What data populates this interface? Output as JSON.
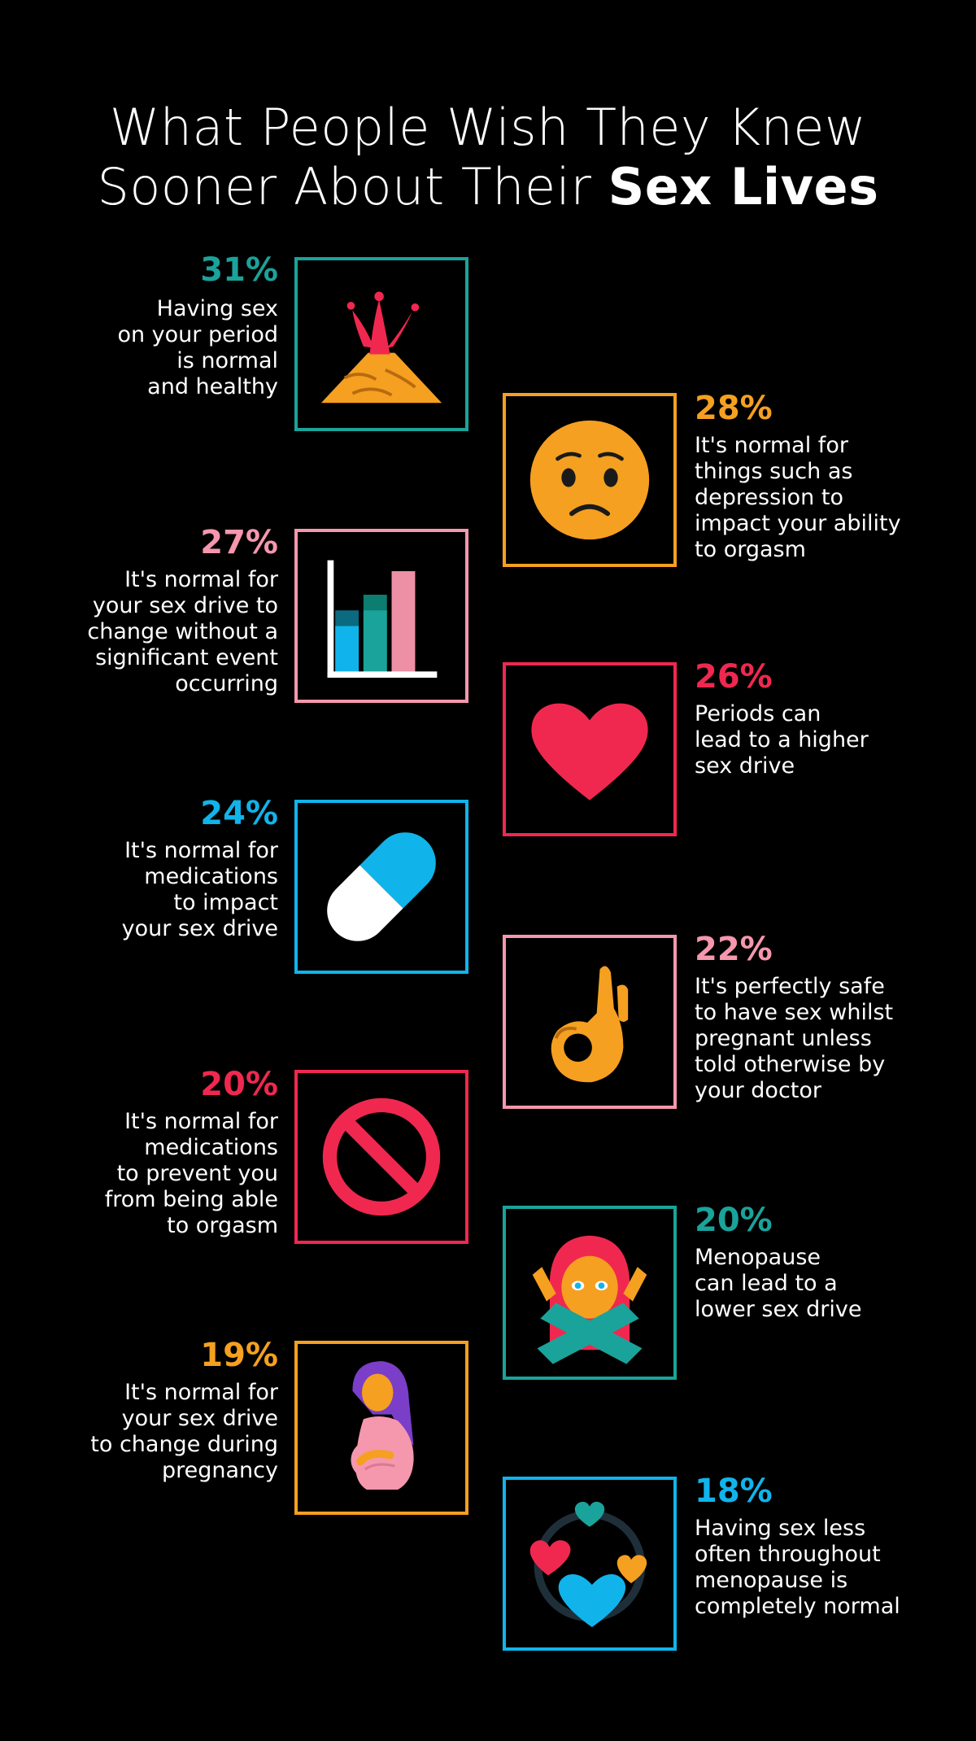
{
  "title": {
    "line1": "What People Wish They Knew",
    "line2_prefix": "Sooner About Their ",
    "line2_bold": "Sex Lives"
  },
  "colors": {
    "teal": "#1aa39a",
    "orange": "#f5a020",
    "pink": "#f597ad",
    "red": "#f0284f",
    "blue": "#10b4ea",
    "background": "#000000"
  },
  "items": [
    {
      "percent": "31%",
      "percent_value": 31,
      "line1": "Having sex",
      "line2": "on your period",
      "line3": "is normal",
      "line4": "and healthy",
      "line5": "",
      "icon": "volcano-icon",
      "color": "#1aa39a"
    },
    {
      "percent": "28%",
      "percent_value": 28,
      "line1": "It's normal for",
      "line2": "things such as",
      "line3": "depression to",
      "line4": "impact your ability",
      "line5": "to orgasm",
      "icon": "worried-face-icon",
      "color": "#f5a020"
    },
    {
      "percent": "27%",
      "percent_value": 27,
      "line1": "It's normal for",
      "line2": "your sex drive to",
      "line3": "change without a",
      "line4": "significant event",
      "line5": "occurring",
      "icon": "bar-chart-icon",
      "color": "#f597ad"
    },
    {
      "percent": "26%",
      "percent_value": 26,
      "line1": "Periods can",
      "line2": "lead to a higher",
      "line3": "sex drive",
      "line4": "",
      "line5": "",
      "icon": "heart-icon",
      "color": "#f0284f"
    },
    {
      "percent": "24%",
      "percent_value": 24,
      "line1": "It's normal for",
      "line2": "medications",
      "line3": "to impact",
      "line4": "your sex drive",
      "line5": "",
      "icon": "pill-icon",
      "color": "#10b4ea"
    },
    {
      "percent": "22%",
      "percent_value": 22,
      "line1": "It's perfectly safe",
      "line2": "to have sex whilst",
      "line3": "pregnant unless",
      "line4": "told otherwise by",
      "line5": "your doctor",
      "icon": "ok-hand-icon",
      "color": "#f597ad"
    },
    {
      "percent": "20%",
      "percent_value": 20,
      "line1": "It's normal for",
      "line2": "medications",
      "line3": "to prevent you",
      "line4": "from being able",
      "line5": "to orgasm",
      "icon": "prohibited-icon",
      "color": "#f0284f"
    },
    {
      "percent": "20%",
      "percent_value": 20,
      "line1": "Menopause",
      "line2": "can lead to a",
      "line3": "lower sex drive",
      "line4": "",
      "line5": "",
      "icon": "woman-crossed-arms-icon",
      "color": "#1aa39a"
    },
    {
      "percent": "19%",
      "percent_value": 19,
      "line1": "It's normal for",
      "line2": "your sex drive",
      "line3": "to change during",
      "line4": "pregnancy",
      "line5": "",
      "icon": "pregnant-woman-icon",
      "color": "#f5a020"
    },
    {
      "percent": "18%",
      "percent_value": 18,
      "line1": "Having sex less",
      "line2": "often throughout",
      "line3": "menopause is",
      "line4": "completely normal",
      "line5": "",
      "icon": "revolving-hearts-icon",
      "color": "#10b4ea"
    }
  ]
}
